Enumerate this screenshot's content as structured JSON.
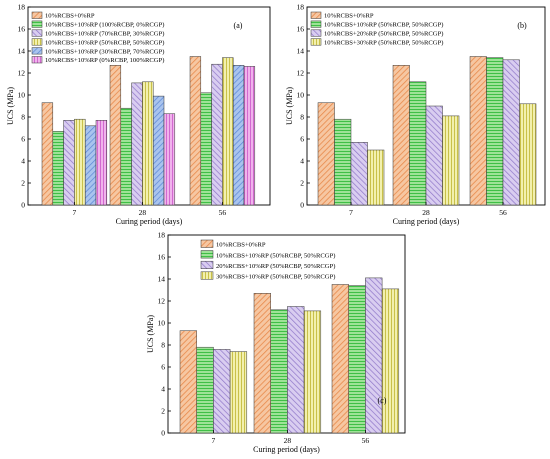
{
  "chart_data": [
    {
      "type": "bar",
      "panel": "(a)",
      "xlabel": "Curing period (days)",
      "ylabel": "UCS (MPa)",
      "ylim": [
        0,
        18
      ],
      "yticks": [
        0,
        2,
        4,
        6,
        8,
        10,
        12,
        14,
        16,
        18
      ],
      "grid": false,
      "legend_position": "top-left",
      "categories": [
        "7",
        "28",
        "56"
      ],
      "series": [
        {
          "name": "10%RCBS+0%RP",
          "values": [
            9.3,
            12.7,
            13.5
          ]
        },
        {
          "name": "10%RCBS+10%RP (100%RCBP, 0%RCGP)",
          "values": [
            6.7,
            8.8,
            10.2
          ]
        },
        {
          "name": "10%RCBS+10%RP (70%RCBP, 30%RCGP)",
          "values": [
            7.7,
            11.1,
            12.8
          ]
        },
        {
          "name": "10%RCBS+10%RP (50%RCBP, 50%RCGP)",
          "values": [
            7.8,
            11.2,
            13.4
          ]
        },
        {
          "name": "10%RCBS+10%RP (30%RCBP, 70%RCGP)",
          "values": [
            7.2,
            9.9,
            12.7
          ]
        },
        {
          "name": "10%RCBS+10%RP (0%RCBP, 100%RCGP)",
          "values": [
            7.7,
            8.3,
            12.6
          ]
        }
      ]
    },
    {
      "type": "bar",
      "panel": "(b)",
      "xlabel": "Curing period (days)",
      "ylabel": "UCS (MPa)",
      "ylim": [
        0,
        18
      ],
      "yticks": [
        0,
        2,
        4,
        6,
        8,
        10,
        12,
        14,
        16,
        18
      ],
      "grid": false,
      "legend_position": "top-left",
      "categories": [
        "7",
        "28",
        "56"
      ],
      "series": [
        {
          "name": "10%RCBS+0%RP",
          "values": [
            9.3,
            12.7,
            13.5
          ]
        },
        {
          "name": "10%RCBS+10%RP (50%RCBP, 50%RCGP)",
          "values": [
            7.8,
            11.2,
            13.4
          ]
        },
        {
          "name": "10%RCBS+20%RP (50%RCBP, 50%RCGP)",
          "values": [
            5.7,
            9.0,
            13.2
          ]
        },
        {
          "name": "10%RCBS+30%RP (50%RCBP, 50%RCGP)",
          "values": [
            5.0,
            8.1,
            9.2
          ]
        }
      ]
    },
    {
      "type": "bar",
      "panel": "(c)",
      "xlabel": "Curing period (days)",
      "ylabel": "UCS (MPa)",
      "ylim": [
        0,
        18
      ],
      "yticks": [
        0,
        2,
        4,
        6,
        8,
        10,
        12,
        14,
        16,
        18
      ],
      "grid": false,
      "legend_position": "top-left",
      "categories": [
        "7",
        "28",
        "56"
      ],
      "series": [
        {
          "name": "10%RCBS+0%RP",
          "values": [
            9.3,
            12.7,
            13.5
          ]
        },
        {
          "name": "10%RCBS+10%RP (50%RCBP, 50%RCGP)",
          "values": [
            7.8,
            11.2,
            13.4
          ]
        },
        {
          "name": "20%RCBS+10%RP (50%RCBP, 50%RCGP)",
          "values": [
            7.6,
            11.5,
            14.1
          ]
        },
        {
          "name": "30%RCBS+10%RP (50%RCBP, 50%RCGP)",
          "values": [
            7.4,
            11.1,
            13.1
          ]
        }
      ]
    }
  ],
  "styles": {
    "panel_a": [
      "orange-diag",
      "green-horiz",
      "purple-diag",
      "yellow-vert",
      "blue-diag",
      "magenta-vert"
    ],
    "panel_b": [
      "orange-diag",
      "green-horiz",
      "purple-diag",
      "yellow-vert"
    ],
    "panel_c": [
      "orange-diag",
      "green-horiz",
      "purple-diag",
      "yellow-vert"
    ]
  }
}
